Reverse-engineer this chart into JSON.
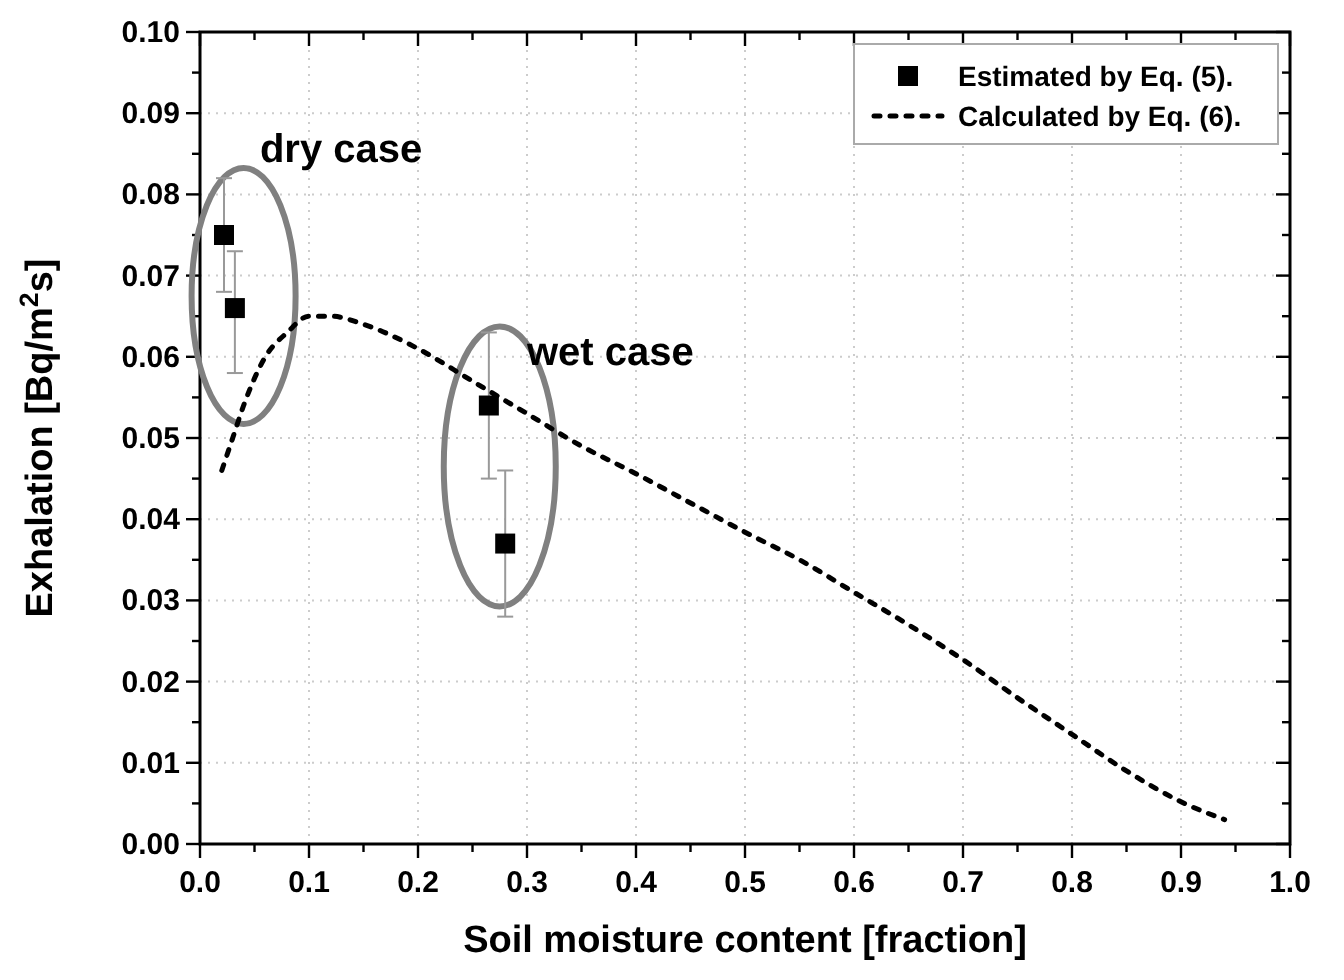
{
  "chart_data": {
    "type": "scatter",
    "xlabel": "Soil moisture content [fraction]",
    "ylabel": "Exhalation [Bq/m$^{2}$s]",
    "xlim": [
      0,
      1
    ],
    "ylim": [
      0,
      0.1
    ],
    "xticks": [
      {
        "value": 0,
        "label": "0.0"
      },
      {
        "value": 0.1,
        "label": "0.1"
      },
      {
        "value": 0.2,
        "label": "0.2"
      },
      {
        "value": 0.3,
        "label": "0.3"
      },
      {
        "value": 0.4,
        "label": "0.4"
      },
      {
        "value": 0.5,
        "label": "0.5"
      },
      {
        "value": 0.6,
        "label": "0.6"
      },
      {
        "value": 0.7,
        "label": "0.7"
      },
      {
        "value": 0.8,
        "label": "0.8"
      },
      {
        "value": 0.9,
        "label": "0.9"
      },
      {
        "value": 1,
        "label": "1.0"
      }
    ],
    "yticks": [
      {
        "value": 0,
        "label": "0.00"
      },
      {
        "value": 0.01,
        "label": "0.01"
      },
      {
        "value": 0.02,
        "label": "0.02"
      },
      {
        "value": 0.03,
        "label": "0.03"
      },
      {
        "value": 0.04,
        "label": "0.04"
      },
      {
        "value": 0.05,
        "label": "0.05"
      },
      {
        "value": 0.06,
        "label": "0.06"
      },
      {
        "value": 0.07,
        "label": "0.07"
      },
      {
        "value": 0.08,
        "label": "0.08"
      },
      {
        "value": 0.09,
        "label": "0.09"
      },
      {
        "value": 0.1,
        "label": "0.10"
      }
    ],
    "grid": true,
    "legend": "top right",
    "marker": "square",
    "line_style": "dotted",
    "annotations": [
      "dry case",
      "wet case"
    ],
    "series": [
      {
        "name": "Estimated by Eq. (5).",
        "color": "#000000",
        "x": [
          0.022,
          0.032,
          0.265,
          0.28
        ],
        "values": [
          0.075,
          0.066,
          0.054,
          0.037
        ],
        "errors": [
          [
            0.068,
            0.082
          ],
          [
            0.058,
            0.073
          ],
          [
            0.045,
            0.063
          ],
          [
            0.028,
            0.046
          ]
        ]
      },
      {
        "name": "Calculated by Eq. (6).",
        "type": "line",
        "marker": "none",
        "color": "#000000",
        "x": [
          0.02,
          0.03,
          0.04,
          0.06,
          0.08,
          0.1,
          0.12,
          0.15,
          0.2,
          0.25,
          0.3,
          0.35,
          0.4,
          0.45,
          0.5,
          0.55,
          0.6,
          0.65,
          0.7,
          0.75,
          0.8,
          0.85,
          0.9,
          0.94
        ],
        "values": [
          0.046,
          0.05,
          0.054,
          0.06,
          0.063,
          0.065,
          0.065,
          0.064,
          0.061,
          0.057,
          0.053,
          0.049,
          0.0456,
          0.042,
          0.0384,
          0.035,
          0.031,
          0.027,
          0.0227,
          0.018,
          0.0135,
          0.009,
          0.0052,
          0.003
        ]
      }
    ]
  }
}
